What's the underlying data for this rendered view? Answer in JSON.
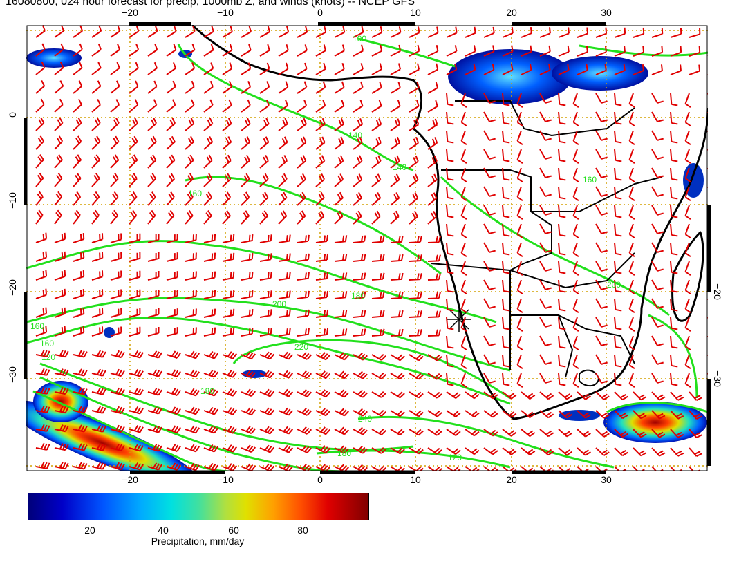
{
  "title": "16080800, 024 hour forecast for precip, 1000mb Z, and winds (knots) -- NCEP GFS",
  "map": {
    "lon_ticks_top": [
      "−20",
      "−10",
      "0",
      "10",
      "20",
      "30"
    ],
    "lon_ticks_bottom": [
      "−20",
      "−10",
      "0",
      "10",
      "20",
      "30"
    ],
    "lat_ticks_left": [
      "0",
      "−10",
      "−20",
      "−30"
    ],
    "lat_ticks_right": [
      "−20",
      "−30"
    ],
    "contour_labels": [
      "100",
      "140",
      "140",
      "160",
      "180",
      "200",
      "220",
      "240",
      "180",
      "120",
      "160",
      "180",
      "160",
      "120",
      "200",
      "160"
    ],
    "colors": {
      "contour": "#22e01c",
      "wind_barb": "#e00000",
      "coastline": "#000000",
      "grid": "#d4a000"
    }
  },
  "colorbar": {
    "ticks": [
      "20",
      "40",
      "60",
      "80"
    ],
    "label": "Precipitation, mm/day"
  }
}
